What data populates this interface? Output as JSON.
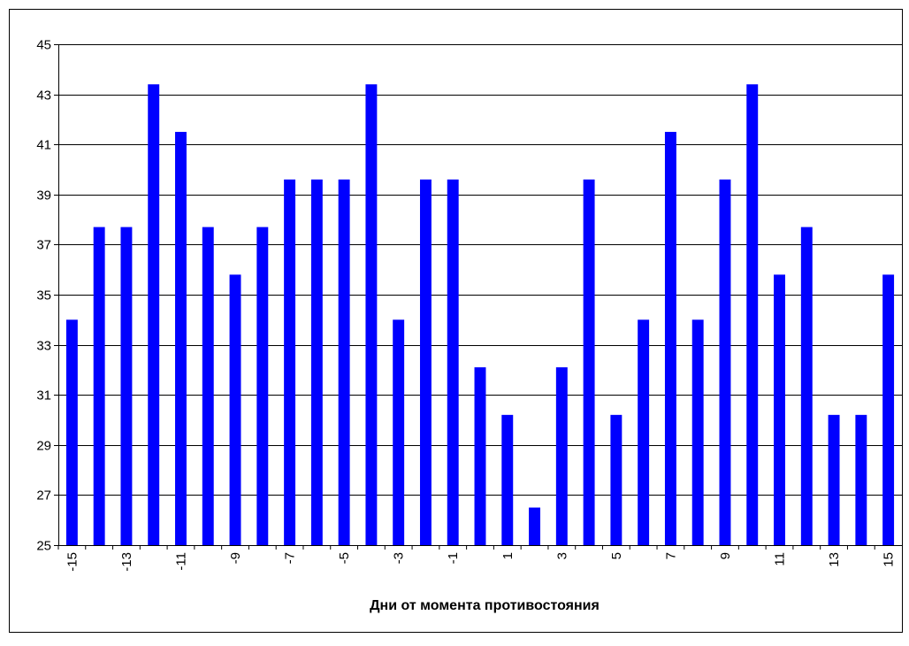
{
  "chart_data": {
    "type": "bar",
    "x_label": "Дни от момента противостояния",
    "categories": [
      "-15",
      null,
      "-13",
      null,
      "-11",
      null,
      "-9",
      null,
      "-7",
      null,
      "-5",
      null,
      "-3",
      null,
      "-1",
      null,
      "1",
      null,
      "3",
      null,
      "5",
      null,
      "7",
      null,
      "9",
      null,
      "11",
      null,
      "13",
      null,
      "15"
    ],
    "values": [
      34.0,
      37.7,
      37.7,
      43.4,
      41.5,
      37.7,
      35.8,
      37.7,
      39.6,
      39.6,
      39.6,
      43.4,
      34.0,
      39.6,
      39.6,
      32.1,
      30.2,
      26.5,
      32.1,
      39.6,
      30.2,
      34.0,
      41.5,
      34.0,
      39.6,
      43.4,
      35.8,
      37.7,
      30.2,
      30.2,
      35.8
    ],
    "color": "#0000ff",
    "ylim": [
      25,
      45
    ],
    "yticks": [
      25,
      27,
      29,
      31,
      33,
      35,
      37,
      39,
      41,
      43,
      45
    ],
    "grid": true
  }
}
